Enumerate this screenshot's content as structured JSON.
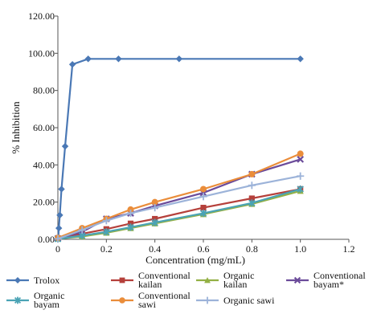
{
  "chart_data": {
    "type": "line",
    "xlabel": "Concentration (mg/mL)",
    "ylabel": "% Inhibition",
    "xlim": [
      0,
      1.2
    ],
    "ylim": [
      0,
      120
    ],
    "x_ticks": [
      "0",
      "0.2",
      "0.4",
      "0.6",
      "0.8",
      "1.0",
      "1.2"
    ],
    "y_ticks": [
      "0.00",
      "20.00",
      "40.00",
      "60.00",
      "80.00",
      "100.00",
      "120.00"
    ],
    "grid": false,
    "legend_position": "bottom",
    "series": [
      {
        "name": "Trolox",
        "color": "#4a78b5",
        "marker": "diamond",
        "points": [
          [
            0.002,
            1
          ],
          [
            0.004,
            6
          ],
          [
            0.008,
            13
          ],
          [
            0.015,
            27
          ],
          [
            0.03,
            50
          ],
          [
            0.06,
            94
          ],
          [
            0.125,
            97
          ],
          [
            0.25,
            97
          ],
          [
            0.5,
            97
          ],
          [
            1.0,
            97
          ]
        ]
      },
      {
        "name": "Conventional kailan",
        "color": "#b5403b",
        "marker": "square",
        "points": [
          [
            0,
            0.5
          ],
          [
            0.1,
            3
          ],
          [
            0.2,
            5.5
          ],
          [
            0.3,
            8.5
          ],
          [
            0.4,
            11
          ],
          [
            0.6,
            17
          ],
          [
            0.8,
            22
          ],
          [
            1.0,
            27
          ]
        ]
      },
      {
        "name": "Organic kailan",
        "color": "#93b044",
        "marker": "triangle",
        "points": [
          [
            0,
            0.3
          ],
          [
            0.1,
            1.5
          ],
          [
            0.2,
            3.5
          ],
          [
            0.3,
            6
          ],
          [
            0.4,
            8.5
          ],
          [
            0.6,
            13.5
          ],
          [
            0.8,
            19
          ],
          [
            1.0,
            26
          ]
        ]
      },
      {
        "name": "Conventional bayam*",
        "color": "#6b4b9a",
        "marker": "x",
        "points": [
          [
            0,
            0.5
          ],
          [
            0.1,
            4
          ],
          [
            0.2,
            11
          ],
          [
            0.3,
            14
          ],
          [
            0.4,
            18
          ],
          [
            0.6,
            25
          ],
          [
            0.8,
            35
          ],
          [
            1.0,
            43
          ]
        ]
      },
      {
        "name": "Organic bayam",
        "color": "#4aa3b5",
        "marker": "star",
        "points": [
          [
            0,
            0.2
          ],
          [
            0.1,
            2
          ],
          [
            0.2,
            4
          ],
          [
            0.3,
            6.5
          ],
          [
            0.4,
            9
          ],
          [
            0.6,
            14
          ],
          [
            0.8,
            19.5
          ],
          [
            1.0,
            27
          ]
        ]
      },
      {
        "name": "Conventional sawi",
        "color": "#ea8d3a",
        "marker": "circle",
        "points": [
          [
            0,
            0.8
          ],
          [
            0.1,
            6
          ],
          [
            0.2,
            11
          ],
          [
            0.3,
            16
          ],
          [
            0.4,
            20
          ],
          [
            0.6,
            27
          ],
          [
            0.8,
            35
          ],
          [
            1.0,
            46
          ]
        ]
      },
      {
        "name": "Organic sawi",
        "color": "#9cb3d9",
        "marker": "plus",
        "points": [
          [
            0,
            0.3
          ],
          [
            0.1,
            5
          ],
          [
            0.2,
            10
          ],
          [
            0.3,
            14
          ],
          [
            0.4,
            17
          ],
          [
            0.6,
            23
          ],
          [
            0.8,
            29
          ],
          [
            1.0,
            34
          ]
        ]
      }
    ]
  }
}
